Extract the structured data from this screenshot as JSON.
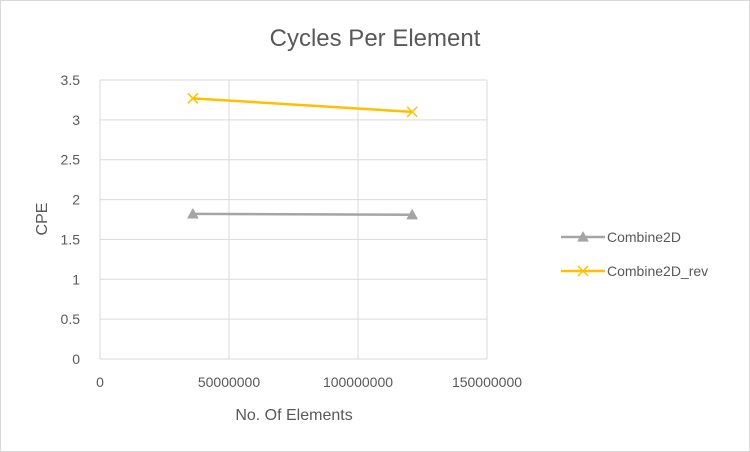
{
  "chart_data": {
    "type": "scatter",
    "title": "Cycles Per Element",
    "xlabel": "No. Of Elements",
    "ylabel": "CPE",
    "xlim": [
      0,
      150000000
    ],
    "ylim": [
      0,
      3.5
    ],
    "x_ticks": [
      0,
      50000000,
      100000000,
      150000000
    ],
    "x_tick_labels": [
      "0",
      "50000000",
      "100000000",
      "150000000"
    ],
    "y_ticks": [
      0,
      0.5,
      1,
      1.5,
      2,
      2.5,
      3,
      3.5
    ],
    "y_tick_labels": [
      "0",
      "0.5",
      "1",
      "1.5",
      "2",
      "2.5",
      "3",
      "3.5"
    ],
    "grid": true,
    "legend_position": "right",
    "series": [
      {
        "name": "Combine2D",
        "color": "#a5a5a5",
        "marker": "triangle",
        "x": [
          36000000,
          121000000
        ],
        "y": [
          1.82,
          1.81
        ]
      },
      {
        "name": "Combine2D_rev",
        "color": "#ffc000",
        "marker": "x",
        "x": [
          36000000,
          121000000
        ],
        "y": [
          3.27,
          3.1
        ]
      }
    ]
  }
}
